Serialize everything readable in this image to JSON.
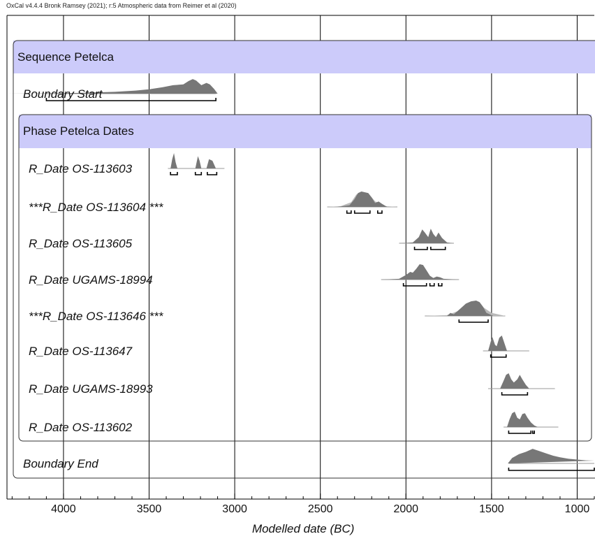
{
  "chart_data": {
    "type": "oxcal-multiplot",
    "credit": "OxCal v4.4.4 Bronk Ramsey (2021); r:5 Atmospheric data from Reimer et al (2020)",
    "xlabel": "Modelled date (BC)",
    "xlim": [
      4330,
      900
    ],
    "x_ticks": [
      4000,
      3500,
      3000,
      2500,
      2000,
      1500,
      1000
    ],
    "minor_tick_step": 100,
    "colors": {
      "band": "#cccbfa",
      "density": "#777777",
      "likelihood": "#b9b9b9",
      "grid": "#000000"
    },
    "sequence": {
      "label": "Sequence Petelca"
    },
    "phase": {
      "label": "Phase Petelca Dates"
    },
    "items": [
      {
        "label": "Boundary Start",
        "type": "boundary",
        "in_phase": false,
        "range": [
          4100,
          3110
        ],
        "density": [
          [
            4330,
            0
          ],
          [
            4100,
            0.02
          ],
          [
            3900,
            0.05
          ],
          [
            3700,
            0.12
          ],
          [
            3580,
            0.2
          ],
          [
            3500,
            0.28
          ],
          [
            3420,
            0.42
          ],
          [
            3360,
            0.55
          ],
          [
            3300,
            0.6
          ],
          [
            3270,
            0.82
          ],
          [
            3245,
            0.95
          ],
          [
            3225,
            0.85
          ],
          [
            3195,
            0.55
          ],
          [
            3165,
            0.7
          ],
          [
            3145,
            0.6
          ],
          [
            3120,
            0.3
          ],
          [
            3100,
            0
          ]
        ],
        "hpd": [
          [
            4100,
            3110
          ]
        ]
      },
      {
        "label": "R_Date OS-113603",
        "type": "date",
        "in_phase": true,
        "range": [
          3390,
          3060
        ],
        "density": [
          [
            3375,
            0
          ],
          [
            3365,
            0.6
          ],
          [
            3355,
            1.0
          ],
          [
            3345,
            0.4
          ],
          [
            3335,
            0
          ],
          [
            3230,
            0
          ],
          [
            3215,
            0.8
          ],
          [
            3205,
            0.5
          ],
          [
            3195,
            0
          ],
          [
            3165,
            0
          ],
          [
            3150,
            0.6
          ],
          [
            3130,
            0.5
          ],
          [
            3110,
            0
          ]
        ],
        "hpd": [
          [
            3375,
            3335
          ],
          [
            3230,
            3195
          ],
          [
            3160,
            3105
          ]
        ]
      },
      {
        "label": "***R_Date OS-113604 ***",
        "type": "date",
        "in_phase": true,
        "range": [
          2460,
          2050
        ],
        "likelihood": [
          [
            2460,
            0
          ],
          [
            2380,
            0.05
          ],
          [
            2320,
            0.3
          ],
          [
            2290,
            0.8
          ],
          [
            2260,
            1.0
          ],
          [
            2220,
            0.9
          ],
          [
            2180,
            0.35
          ],
          [
            2150,
            0.25
          ],
          [
            2120,
            0.05
          ],
          [
            2050,
            0
          ]
        ],
        "density": [
          [
            2400,
            0
          ],
          [
            2330,
            0.1
          ],
          [
            2300,
            0.5
          ],
          [
            2280,
            0.9
          ],
          [
            2260,
            1.0
          ],
          [
            2240,
            0.95
          ],
          [
            2220,
            0.9
          ],
          [
            2200,
            0.6
          ],
          [
            2180,
            0.25
          ],
          [
            2160,
            0.35
          ],
          [
            2140,
            0.2
          ],
          [
            2110,
            0
          ]
        ],
        "hpd": [
          [
            2345,
            2320
          ],
          [
            2300,
            2210
          ],
          [
            2165,
            2140
          ]
        ]
      },
      {
        "label": "R_Date OS-113605",
        "type": "date",
        "in_phase": true,
        "range": [
          2040,
          1720
        ],
        "density": [
          [
            2040,
            0
          ],
          [
            1960,
            0.05
          ],
          [
            1925,
            0.4
          ],
          [
            1905,
            0.9
          ],
          [
            1890,
            0.7
          ],
          [
            1870,
            0.4
          ],
          [
            1855,
            0.95
          ],
          [
            1840,
            0.6
          ],
          [
            1825,
            0.4
          ],
          [
            1810,
            0.7
          ],
          [
            1790,
            0.35
          ],
          [
            1760,
            0.05
          ],
          [
            1720,
            0
          ]
        ],
        "hpd": [
          [
            1950,
            1875
          ],
          [
            1855,
            1770
          ]
        ]
      },
      {
        "label": "R_Date UGAMS-18994",
        "type": "date",
        "in_phase": true,
        "range": [
          2145,
          1690
        ],
        "density": [
          [
            2145,
            0
          ],
          [
            2040,
            0.05
          ],
          [
            2000,
            0.3
          ],
          [
            1975,
            0.5
          ],
          [
            1960,
            0.45
          ],
          [
            1940,
            0.7
          ],
          [
            1920,
            1.0
          ],
          [
            1900,
            0.95
          ],
          [
            1880,
            0.6
          ],
          [
            1860,
            0.25
          ],
          [
            1840,
            0.1
          ],
          [
            1820,
            0.2
          ],
          [
            1800,
            0.15
          ],
          [
            1780,
            0.05
          ],
          [
            1690,
            0
          ]
        ],
        "hpd": [
          [
            2015,
            1880
          ],
          [
            1860,
            1835
          ],
          [
            1810,
            1790
          ]
        ]
      },
      {
        "label": "***R_Date OS-113646 ***",
        "type": "date",
        "in_phase": true,
        "range": [
          1890,
          1420
        ],
        "likelihood": [
          [
            1890,
            0
          ],
          [
            1760,
            0.05
          ],
          [
            1700,
            0.3
          ],
          [
            1650,
            0.6
          ],
          [
            1600,
            0.9
          ],
          [
            1570,
            0.75
          ],
          [
            1540,
            0.5
          ],
          [
            1500,
            0.2
          ],
          [
            1420,
            0
          ]
        ],
        "density": [
          [
            1760,
            0
          ],
          [
            1740,
            0.2
          ],
          [
            1720,
            0.1
          ],
          [
            1700,
            0.3
          ],
          [
            1680,
            0.5
          ],
          [
            1650,
            0.8
          ],
          [
            1620,
            0.95
          ],
          [
            1590,
            1.0
          ],
          [
            1570,
            0.9
          ],
          [
            1550,
            0.6
          ],
          [
            1530,
            0.2
          ],
          [
            1510,
            0.1
          ],
          [
            1490,
            0
          ]
        ],
        "hpd": [
          [
            1690,
            1520
          ]
        ]
      },
      {
        "label": "R_Date OS-113647",
        "type": "date",
        "in_phase": true,
        "range": [
          1550,
          1280
        ],
        "density": [
          [
            1520,
            0
          ],
          [
            1505,
            0.6
          ],
          [
            1495,
            0.9
          ],
          [
            1480,
            0.4
          ],
          [
            1470,
            0.3
          ],
          [
            1455,
            0.85
          ],
          [
            1440,
            1.0
          ],
          [
            1425,
            0.5
          ],
          [
            1410,
            0
          ]
        ],
        "hpd": [
          [
            1505,
            1415
          ]
        ]
      },
      {
        "label": "R_Date UGAMS-18993",
        "type": "date",
        "in_phase": true,
        "range": [
          1520,
          1130
        ],
        "density": [
          [
            1450,
            0
          ],
          [
            1430,
            0.5
          ],
          [
            1415,
            0.9
          ],
          [
            1400,
            1.0
          ],
          [
            1385,
            0.6
          ],
          [
            1370,
            0.4
          ],
          [
            1350,
            0.6
          ],
          [
            1335,
            0.9
          ],
          [
            1320,
            0.6
          ],
          [
            1300,
            0.25
          ],
          [
            1280,
            0
          ]
        ],
        "hpd": [
          [
            1440,
            1290
          ]
        ]
      },
      {
        "label": "R_Date OS-113602",
        "type": "date",
        "in_phase": true,
        "range": [
          1430,
          1110
        ],
        "density": [
          [
            1410,
            0
          ],
          [
            1395,
            0.5
          ],
          [
            1380,
            0.9
          ],
          [
            1365,
            1.0
          ],
          [
            1350,
            0.6
          ],
          [
            1335,
            0.5
          ],
          [
            1320,
            0.85
          ],
          [
            1305,
            0.9
          ],
          [
            1290,
            0.6
          ],
          [
            1270,
            0.3
          ],
          [
            1250,
            0.1
          ],
          [
            1230,
            0
          ]
        ],
        "hpd": [
          [
            1400,
            1270
          ],
          [
            1260,
            1250
          ]
        ]
      },
      {
        "label": "Boundary End",
        "type": "boundary",
        "in_phase": false,
        "range": [
          1400,
          900
        ],
        "density": [
          [
            1405,
            0
          ],
          [
            1380,
            0.35
          ],
          [
            1340,
            0.6
          ],
          [
            1300,
            0.75
          ],
          [
            1260,
            0.95
          ],
          [
            1220,
            0.8
          ],
          [
            1180,
            0.65
          ],
          [
            1140,
            0.5
          ],
          [
            1100,
            0.4
          ],
          [
            1050,
            0.3
          ],
          [
            1000,
            0.25
          ],
          [
            950,
            0.2
          ],
          [
            900,
            0.18
          ]
        ],
        "hpd": [
          [
            1400,
            900
          ]
        ]
      }
    ]
  }
}
